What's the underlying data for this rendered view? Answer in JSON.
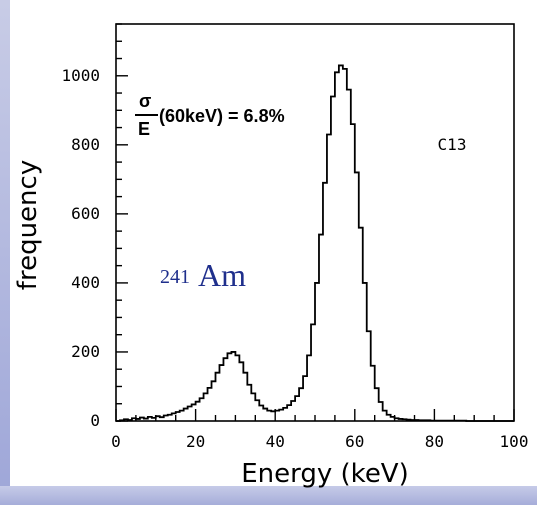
{
  "chart_data": {
    "type": "line",
    "title": "",
    "xlabel": "Energy (keV)",
    "ylabel": "frequency",
    "xlim": [
      0,
      100
    ],
    "ylim": [
      0,
      1150
    ],
    "x_ticks": [
      "0",
      "20",
      "40",
      "60",
      "80",
      "100"
    ],
    "y_ticks": [
      "0",
      "200",
      "400",
      "600",
      "800",
      "1000"
    ],
    "grid": false,
    "annotations": {
      "label": "C13",
      "isotope_mass": "241",
      "isotope_symbol": "Am",
      "resolution_numerator": "σ",
      "resolution_denominator": "E",
      "resolution_text": "(60keV) = 6.8%"
    },
    "series": [
      {
        "style": "step",
        "x": [
          0,
          1,
          2,
          3,
          4,
          5,
          6,
          7,
          8,
          9,
          10,
          11,
          12,
          13,
          14,
          15,
          16,
          17,
          18,
          19,
          20,
          21,
          22,
          23,
          24,
          25,
          26,
          27,
          28,
          29,
          30,
          31,
          32,
          33,
          34,
          35,
          36,
          37,
          38,
          39,
          40,
          41,
          42,
          43,
          44,
          45,
          46,
          47,
          48,
          49,
          50,
          51,
          52,
          53,
          54,
          55,
          56,
          57,
          58,
          59,
          60,
          61,
          62,
          63,
          64,
          65,
          66,
          67,
          68,
          69,
          70,
          71,
          72,
          73,
          74,
          75,
          76,
          77,
          78,
          79,
          80,
          81,
          82,
          83,
          84,
          85,
          86,
          87,
          88,
          89,
          90,
          91,
          92,
          93,
          94,
          95,
          96,
          97,
          98,
          99,
          100
        ],
        "y": [
          0,
          2,
          5,
          3,
          8,
          6,
          10,
          7,
          12,
          9,
          14,
          11,
          16,
          18,
          22,
          26,
          30,
          36,
          42,
          48,
          56,
          66,
          80,
          96,
          115,
          140,
          162,
          182,
          196,
          200,
          190,
          170,
          140,
          105,
          80,
          60,
          45,
          36,
          30,
          28,
          30,
          33,
          38,
          46,
          58,
          72,
          95,
          130,
          190,
          280,
          400,
          540,
          690,
          830,
          940,
          1010,
          1030,
          1020,
          960,
          860,
          720,
          560,
          400,
          260,
          160,
          95,
          55,
          30,
          18,
          12,
          8,
          6,
          5,
          4,
          3,
          3,
          2,
          2,
          2,
          1,
          1,
          1,
          1,
          1,
          1,
          1,
          1,
          1,
          0,
          0,
          0,
          0,
          0,
          0,
          0,
          0,
          0,
          0,
          0,
          0,
          0
        ]
      }
    ]
  }
}
